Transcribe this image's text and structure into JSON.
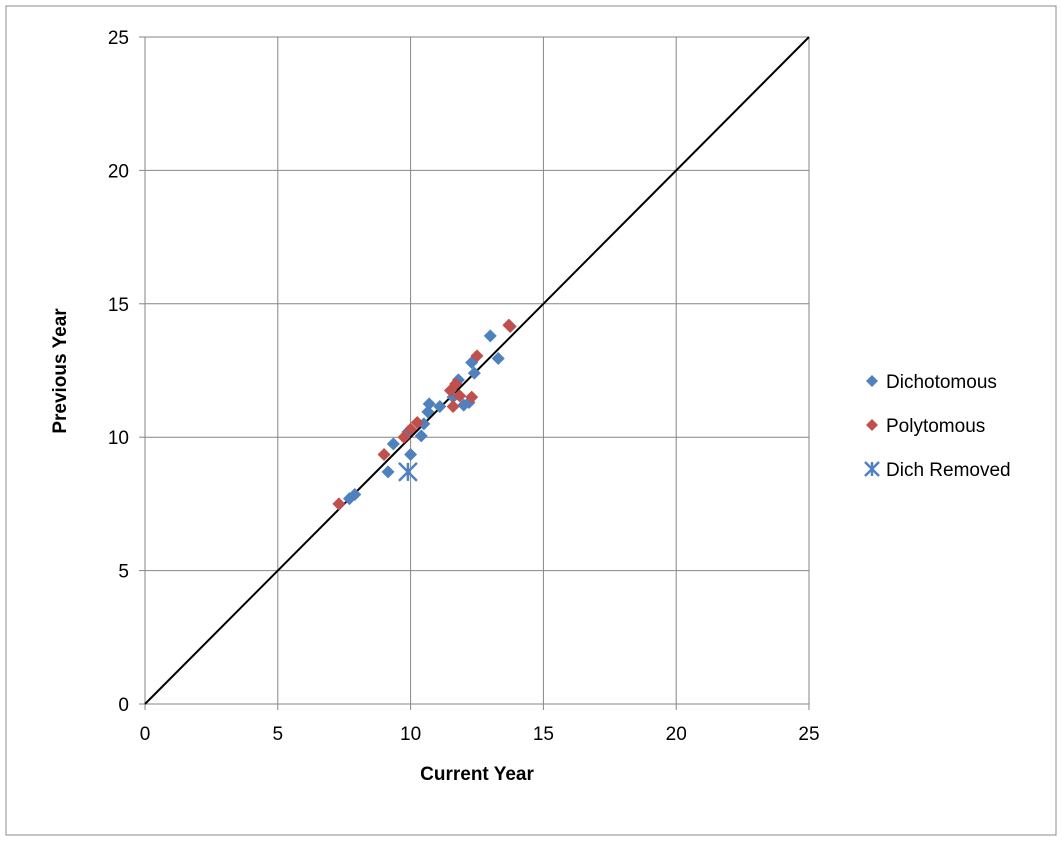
{
  "chart_data": {
    "type": "scatter",
    "title": "",
    "xlabel": "Current Year",
    "ylabel": "Previous Year",
    "xlim": [
      0,
      25
    ],
    "ylim": [
      0,
      25
    ],
    "x_ticks": [
      0,
      5,
      10,
      15,
      20,
      25
    ],
    "y_ticks": [
      0,
      5,
      10,
      15,
      20,
      25
    ],
    "grid": true,
    "legend_position": "right",
    "reference_line": {
      "from": [
        0,
        0
      ],
      "to": [
        25,
        25
      ],
      "color": "#000000"
    },
    "series": [
      {
        "name": "Dichotomous",
        "marker": "diamond",
        "color": "#4F81BD",
        "points": [
          [
            7.7,
            7.7
          ],
          [
            7.9,
            7.85
          ],
          [
            9.15,
            8.7
          ],
          [
            9.35,
            9.75
          ],
          [
            9.9,
            10.2
          ],
          [
            10.0,
            9.35
          ],
          [
            10.4,
            10.05
          ],
          [
            10.5,
            10.5
          ],
          [
            10.65,
            10.95
          ],
          [
            10.7,
            11.25
          ],
          [
            11.1,
            11.15
          ],
          [
            11.6,
            11.5
          ],
          [
            11.8,
            12.15
          ],
          [
            12.0,
            11.2
          ],
          [
            12.2,
            11.3
          ],
          [
            12.3,
            12.8
          ],
          [
            12.4,
            12.4
          ],
          [
            13.0,
            13.8
          ],
          [
            13.3,
            12.95
          ]
        ]
      },
      {
        "name": "Polytomous",
        "marker": "diamond",
        "color": "#C0504D",
        "points": [
          [
            7.3,
            7.5
          ],
          [
            9.0,
            9.35
          ],
          [
            9.75,
            10.0
          ],
          [
            10.0,
            10.3
          ],
          [
            10.25,
            10.55
          ],
          [
            11.5,
            11.75
          ],
          [
            11.6,
            11.15
          ],
          [
            11.7,
            12.0
          ],
          [
            11.85,
            11.55
          ],
          [
            12.3,
            11.5
          ],
          [
            12.5,
            13.05
          ],
          [
            13.7,
            14.2
          ],
          [
            13.75,
            14.15
          ]
        ]
      },
      {
        "name": "Dich Removed",
        "marker": "asterisk",
        "color": "#4F81BD",
        "points": [
          [
            9.9,
            8.7
          ]
        ]
      }
    ]
  }
}
